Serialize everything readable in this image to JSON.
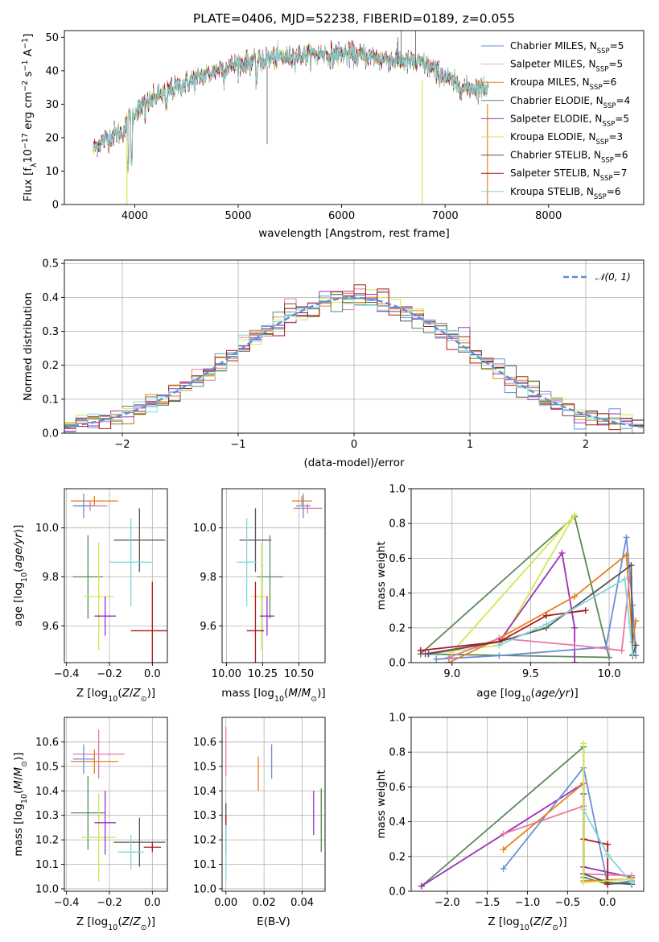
{
  "chart_data": [
    {
      "type": "line",
      "title": "PLATE=0406, MJD=52238, FIBERID=0189, z=0.055",
      "xlabel": "wavelength [Angstrom, rest frame]",
      "ylabel": "Flux [f_λ10^-17 erg cm^-2 s^-1 A^-1]",
      "xlim": [
        3320,
        8920
      ],
      "ylim": [
        0,
        52
      ],
      "xticks": [
        "4000",
        "5000",
        "6000",
        "7000",
        "8000"
      ],
      "yticks": [
        "0",
        "10",
        "20",
        "30",
        "40",
        "50"
      ],
      "grid": false,
      "legend_position": "top-right",
      "continuum": {
        "x": [
          3600,
          3700,
          3800,
          3900,
          3950,
          4050,
          4150,
          4250,
          4400,
          4550,
          4700,
          4850,
          5000,
          5200,
          5400,
          5600,
          5800,
          6000,
          6200,
          6400,
          6600,
          6800,
          6900,
          7000,
          7100,
          7200,
          7300,
          7400,
          7420
        ],
        "values": [
          17,
          19,
          21,
          22,
          26,
          29,
          31,
          33,
          35,
          37,
          39,
          41,
          42,
          43,
          44,
          44.5,
          45,
          45,
          44.5,
          43.5,
          43,
          42,
          40,
          38,
          36,
          35,
          35,
          35,
          35
        ]
      },
      "series": [
        {
          "name": "Chabrier MILES, N_SSP=5",
          "color": "#6a8fd8"
        },
        {
          "name": "Salpeter MILES, N_SSP=5",
          "color": "#f0b0a0"
        },
        {
          "name": "Kroupa MILES, N_SSP=6",
          "color": "#e8801c"
        },
        {
          "name": "Chabrier ELODIE, N_SSP=4",
          "color": "#5a8a5a"
        },
        {
          "name": "Salpeter ELODIE, N_SSP=5",
          "color": "#9b30b8"
        },
        {
          "name": "Kroupa ELODIE, N_SSP=3",
          "color": "#d0e850"
        },
        {
          "name": "Chabrier STELIB, N_SSP=6",
          "color": "#555555"
        },
        {
          "name": "Salpeter STELIB, N_SSP=7",
          "color": "#b01818"
        },
        {
          "name": "Kroupa STELIB, N_SSP=6",
          "color": "#7fd8d8"
        }
      ]
    },
    {
      "type": "histogram",
      "xlabel": "(data-model)/error",
      "ylabel": "Normed distribution",
      "xlim": [
        -2.5,
        2.5
      ],
      "ylim": [
        0,
        0.51
      ],
      "xticks": [
        "−2",
        "−1",
        "0",
        "1",
        "2"
      ],
      "yticks": [
        "0.0",
        "0.1",
        "0.2",
        "0.3",
        "0.4",
        "0.5"
      ],
      "grid": true,
      "legend_position": "top-right",
      "reference_curve": {
        "name": "𝒩(0, 1)",
        "color": "#5b8fd6",
        "mean": 0,
        "sigma": 1
      },
      "bin_width": 0.1,
      "colors": [
        "#6a8fd8",
        "#e878a8",
        "#e8801c",
        "#5a8a5a",
        "#9b30b8",
        "#d0e850",
        "#555555",
        "#b01818",
        "#7fd8d8"
      ]
    },
    {
      "type": "scatter",
      "xlabel": "Z [log10(Z/Z⊙)]",
      "ylabel": "age [log10(age/yr)]",
      "xlim": [
        -0.41,
        0.07
      ],
      "ylim": [
        9.45,
        10.16
      ],
      "xticks": [
        "−0.4",
        "−0.2",
        "0.0"
      ],
      "yticks": [
        "9.6",
        "9.8",
        "10.0"
      ],
      "grid": true,
      "points": [
        {
          "x": -0.27,
          "y": 10.11,
          "xerr": 0.11,
          "yerr": 0.02,
          "color": "#e8801c"
        },
        {
          "x": -0.29,
          "y": 10.09,
          "xerr": 0.08,
          "yerr": 0.02,
          "color": "#e878a8"
        },
        {
          "x": -0.32,
          "y": 10.09,
          "xerr": 0.05,
          "yerr": 0.05,
          "color": "#6a8fd8"
        },
        {
          "x": -0.06,
          "y": 9.95,
          "xerr": 0.12,
          "yerr": 0.13,
          "color": "#555555"
        },
        {
          "x": -0.1,
          "y": 9.86,
          "xerr": 0.1,
          "yerr": 0.18,
          "color": "#7fd8d8"
        },
        {
          "x": -0.3,
          "y": 9.8,
          "xerr": 0.07,
          "yerr": 0.17,
          "color": "#5a8a5a"
        },
        {
          "x": -0.25,
          "y": 9.72,
          "xerr": 0.07,
          "yerr": 0.22,
          "color": "#d0e850"
        },
        {
          "x": -0.22,
          "y": 9.64,
          "xerr": 0.05,
          "yerr": 0.08,
          "color": "#9b30b8"
        },
        {
          "x": 0.0,
          "y": 9.58,
          "xerr": 0.1,
          "yerr": 0.2,
          "color": "#b01818"
        }
      ]
    },
    {
      "type": "scatter",
      "xlabel": "mass [log10(M/M⊙)]",
      "ylabel": "",
      "xlim": [
        9.97,
        10.68
      ],
      "ylim": [
        9.45,
        10.16
      ],
      "xticks": [
        "10.00",
        "10.25",
        "10.50"
      ],
      "yticks": [
        "9.6",
        "9.8",
        "10.0"
      ],
      "grid": true,
      "points": [
        {
          "x": 10.52,
          "y": 10.11,
          "xerr": 0.07,
          "yerr": 0.02,
          "color": "#e8801c"
        },
        {
          "x": 10.56,
          "y": 10.08,
          "xerr": 0.1,
          "yerr": 0.02,
          "color": "#e878a8"
        },
        {
          "x": 10.53,
          "y": 10.09,
          "xerr": 0.05,
          "yerr": 0.05,
          "color": "#6a8fd8"
        },
        {
          "x": 10.2,
          "y": 9.95,
          "xerr": 0.11,
          "yerr": 0.13,
          "color": "#555555"
        },
        {
          "x": 10.14,
          "y": 9.86,
          "xerr": 0.07,
          "yerr": 0.18,
          "color": "#7fd8d8"
        },
        {
          "x": 10.3,
          "y": 9.8,
          "xerr": 0.09,
          "yerr": 0.17,
          "color": "#5a8a5a"
        },
        {
          "x": 10.24,
          "y": 9.72,
          "xerr": 0.07,
          "yerr": 0.22,
          "color": "#d0e850"
        },
        {
          "x": 10.28,
          "y": 9.64,
          "xerr": 0.05,
          "yerr": 0.08,
          "color": "#9b30b8"
        },
        {
          "x": 10.2,
          "y": 9.58,
          "xerr": 0.06,
          "yerr": 0.2,
          "color": "#b01818"
        }
      ]
    },
    {
      "type": "line",
      "xlabel": "age [log10(age/yr)]",
      "ylabel": "mass weight",
      "xlim": [
        8.74,
        10.22
      ],
      "ylim": [
        0,
        1
      ],
      "xticks": [
        "9.0",
        "9.5",
        "10.0"
      ],
      "yticks": [
        "0.0",
        "0.2",
        "0.4",
        "0.6",
        "0.8",
        "1.0"
      ],
      "grid": true,
      "series": [
        {
          "color": "#5a8a5a",
          "x": [
            8.8,
            9.78,
            10.0,
            8.8
          ],
          "values": [
            0.05,
            0.84,
            0.03,
            0.05
          ]
        },
        {
          "color": "#d0e850",
          "x": [
            8.85,
            9.3,
            9.78,
            9.0
          ],
          "values": [
            0.05,
            0.1,
            0.85,
            0.06
          ]
        },
        {
          "color": "#9b30b8",
          "x": [
            8.83,
            9.3,
            9.7,
            9.78,
            9.78
          ],
          "values": [
            0.05,
            0.12,
            0.63,
            0.2,
            0.0
          ]
        },
        {
          "color": "#6a8fd8",
          "x": [
            8.9,
            9.3,
            9.98,
            10.11,
            10.15,
            10.17
          ],
          "values": [
            0.02,
            0.04,
            0.09,
            0.72,
            0.33,
            0.04
          ]
        },
        {
          "color": "#e8801c",
          "x": [
            8.98,
            9.3,
            9.78,
            10.11,
            10.15,
            10.17
          ],
          "values": [
            0.0,
            0.14,
            0.38,
            0.62,
            0.12,
            0.24
          ]
        },
        {
          "color": "#e878a8",
          "x": [
            8.98,
            9.3,
            9.78,
            10.08,
            10.13
          ],
          "values": [
            0.03,
            0.14,
            0.1,
            0.07,
            0.49
          ]
        },
        {
          "color": "#555555",
          "x": [
            8.85,
            9.3,
            9.6,
            10.14,
            10.15,
            10.17
          ],
          "values": [
            0.05,
            0.12,
            0.2,
            0.56,
            0.04,
            0.1
          ]
        },
        {
          "color": "#b01818",
          "x": [
            8.8,
            9.3,
            9.6,
            9.85
          ],
          "values": [
            0.07,
            0.12,
            0.27,
            0.3
          ]
        },
        {
          "color": "#7fd8d8",
          "x": [
            9.3,
            9.6,
            10.1,
            10.15
          ],
          "values": [
            0.1,
            0.22,
            0.48,
            0.05
          ]
        }
      ]
    },
    {
      "type": "scatter",
      "xlabel": "Z [log10(Z/Z⊙)]",
      "ylabel": "mass [log10(M/M⊙)]",
      "xlim": [
        -0.41,
        0.07
      ],
      "ylim": [
        9.99,
        10.7
      ],
      "xticks": [
        "−0.4",
        "−0.2",
        "0.0"
      ],
      "yticks": [
        "10.0",
        "10.1",
        "10.2",
        "10.3",
        "10.4",
        "10.5",
        "10.6"
      ],
      "grid": true,
      "points": [
        {
          "x": -0.27,
          "y": 10.52,
          "xerr": 0.11,
          "yerr": 0.05,
          "color": "#e8801c"
        },
        {
          "x": -0.25,
          "y": 10.55,
          "xerr": 0.12,
          "yerr": 0.1,
          "color": "#e878a8"
        },
        {
          "x": -0.32,
          "y": 10.53,
          "xerr": 0.05,
          "yerr": 0.06,
          "color": "#6a8fd8"
        },
        {
          "x": -0.06,
          "y": 10.19,
          "xerr": 0.12,
          "yerr": 0.1,
          "color": "#555555"
        },
        {
          "x": -0.1,
          "y": 10.15,
          "xerr": 0.06,
          "yerr": 0.07,
          "color": "#7fd8d8"
        },
        {
          "x": -0.3,
          "y": 10.31,
          "xerr": 0.08,
          "yerr": 0.15,
          "color": "#5a8a5a"
        },
        {
          "x": -0.25,
          "y": 10.21,
          "xerr": 0.08,
          "yerr": 0.18,
          "color": "#d0e850"
        },
        {
          "x": -0.22,
          "y": 10.27,
          "xerr": 0.05,
          "yerr": 0.13,
          "color": "#9b30b8"
        },
        {
          "x": 0.0,
          "y": 10.17,
          "xerr": 0.04,
          "yerr": 0.02,
          "color": "#b01818"
        }
      ]
    },
    {
      "type": "scatter",
      "xlabel": "E(B-V)",
      "ylabel": "",
      "xlim": [
        -0.002,
        0.052
      ],
      "ylim": [
        9.99,
        10.7
      ],
      "xticks": [
        "0.00",
        "0.02",
        "0.04"
      ],
      "yticks": [
        "10.0",
        "10.1",
        "10.2",
        "10.3",
        "10.4",
        "10.5",
        "10.6"
      ],
      "grid": true,
      "points": [
        {
          "x": 0.0,
          "y": 10.56,
          "xerr": 0,
          "yerr": 0.1,
          "color": "#e878a8"
        },
        {
          "x": 0.017,
          "y": 10.47,
          "xerr": 0,
          "yerr": 0.07,
          "color": "#e8801c"
        },
        {
          "x": 0.024,
          "y": 10.52,
          "xerr": 0,
          "yerr": 0.07,
          "color": "#6a8fd8"
        },
        {
          "x": 0.0,
          "y": 10.25,
          "xerr": 0,
          "yerr": 0.1,
          "color": "#555555"
        },
        {
          "x": 0.0,
          "y": 10.15,
          "xerr": 0,
          "yerr": 0.12,
          "color": "#7fd8d8"
        },
        {
          "x": 0.0,
          "y": 10.28,
          "xerr": 0,
          "yerr": 0.02,
          "color": "#b01818"
        },
        {
          "x": 0.046,
          "y": 10.31,
          "xerr": 0,
          "yerr": 0.09,
          "color": "#9b30b8"
        },
        {
          "x": 0.05,
          "y": 10.28,
          "xerr": 0,
          "yerr": 0.12,
          "color": "#d0e850"
        },
        {
          "x": 0.05,
          "y": 10.28,
          "xerr": 0,
          "yerr": 0.13,
          "color": "#5a8a5a"
        }
      ]
    },
    {
      "type": "line",
      "xlabel": "Z [log10(Z/Z⊙)]",
      "ylabel": "mass weight",
      "xlim": [
        -2.45,
        0.45
      ],
      "ylim": [
        0,
        1
      ],
      "xticks": [
        "−2.0",
        "−1.5",
        "−1.0",
        "−0.5",
        "0.0"
      ],
      "yticks": [
        "0.0",
        "0.2",
        "0.4",
        "0.6",
        "0.8",
        "1.0"
      ],
      "grid": true,
      "series": [
        {
          "color": "#5a8a5a",
          "x": [
            -2.32,
            -0.3,
            -0.3,
            0.0,
            0.3
          ],
          "values": [
            0.03,
            0.83,
            0.08,
            0.04,
            0.05
          ]
        },
        {
          "color": "#9b30b8",
          "x": [
            -2.32,
            -0.3,
            -0.3,
            0.3
          ],
          "values": [
            0.03,
            0.62,
            0.14,
            0.08
          ]
        },
        {
          "color": "#e878a8",
          "x": [
            -1.3,
            -0.3,
            -0.3,
            0.3
          ],
          "values": [
            0.33,
            0.49,
            0.1,
            0.09
          ]
        },
        {
          "color": "#6a8fd8",
          "x": [
            -1.3,
            -0.3,
            0.0,
            0.3
          ],
          "values": [
            0.13,
            0.71,
            0.04,
            0.06
          ]
        },
        {
          "color": "#e8801c",
          "x": [
            -1.3,
            -0.3,
            -0.3,
            0.3
          ],
          "values": [
            0.24,
            0.62,
            0.06,
            0.07
          ]
        },
        {
          "color": "#555555",
          "x": [
            -0.3,
            -0.3,
            0.0,
            0.3
          ],
          "values": [
            0.56,
            0.1,
            0.05,
            0.04
          ]
        },
        {
          "color": "#b01818",
          "x": [
            -0.3,
            0.0,
            0.0
          ],
          "values": [
            0.3,
            0.27,
            0.04
          ]
        },
        {
          "color": "#7fd8d8",
          "x": [
            -0.3,
            0.0,
            0.3
          ],
          "values": [
            0.47,
            0.21,
            0.05
          ]
        },
        {
          "color": "#d0e850",
          "x": [
            -0.3,
            -0.3,
            0.3
          ],
          "values": [
            0.85,
            0.05,
            0.07
          ]
        }
      ]
    }
  ]
}
